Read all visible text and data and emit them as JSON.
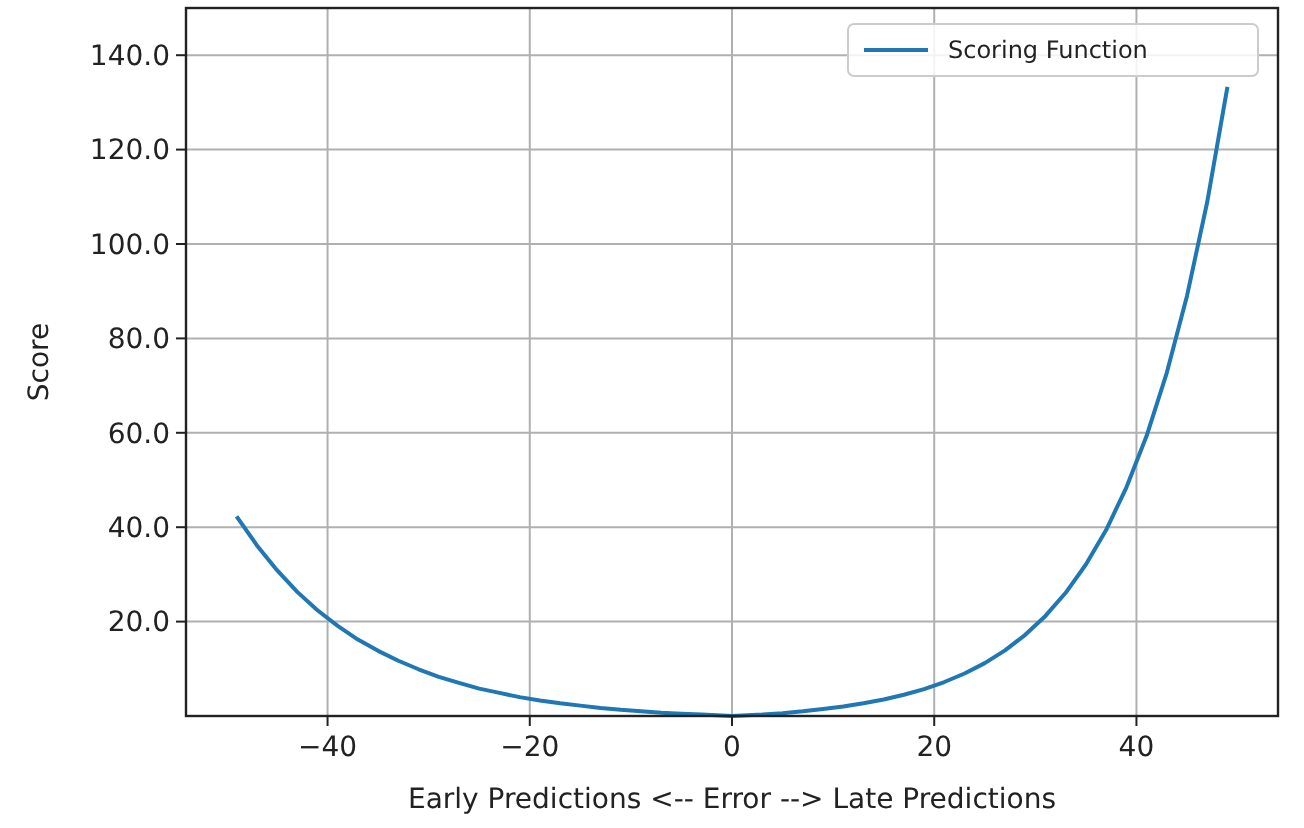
{
  "chart_data": {
    "type": "line",
    "xlabel": "Early Predictions  <--  Error  -->  Late Predictions",
    "ylabel": "Score",
    "x": [
      -49,
      -47,
      -45,
      -43,
      -41,
      -39,
      -37,
      -35,
      -33,
      -31,
      -29,
      -27,
      -25,
      -23,
      -21,
      -19,
      -17,
      -15,
      -13,
      -11,
      -9,
      -7,
      -5,
      -3,
      -1,
      0,
      1,
      3,
      5,
      7,
      9,
      11,
      13,
      15,
      17,
      19,
      21,
      23,
      25,
      27,
      29,
      31,
      33,
      35,
      37,
      39,
      41,
      43,
      45,
      47,
      49
    ],
    "series": [
      {
        "name": "Scoring Function",
        "color": "#1f77b4",
        "values": [
          42.3,
          36.2,
          30.9,
          26.3,
          22.4,
          19.1,
          16.2,
          13.8,
          11.7,
          9.9,
          8.3,
          7.0,
          5.8,
          4.9,
          4.0,
          3.3,
          2.7,
          2.2,
          1.7,
          1.3,
          1.0,
          0.7,
          0.5,
          0.3,
          0.1,
          0,
          0.1,
          0.3,
          0.6,
          1.0,
          1.5,
          2.0,
          2.7,
          3.5,
          4.5,
          5.7,
          7.2,
          9.0,
          11.2,
          13.9,
          17.2,
          21.2,
          26.1,
          32.1,
          39.4,
          48.4,
          59.3,
          72.7,
          89.0,
          108.9,
          133.3
        ]
      }
    ],
    "xlim": [
      -54,
      54
    ],
    "xticks": [
      {
        "value": -40,
        "label": "−40"
      },
      {
        "value": -20,
        "label": "−20"
      },
      0,
      20,
      40
    ],
    "ylim": [
      0,
      150
    ],
    "yticks": [
      {
        "value": 20,
        "label": "20.0"
      },
      {
        "value": 40,
        "label": "40.0"
      },
      {
        "value": 60,
        "label": "60.0"
      },
      {
        "value": 80,
        "label": "80.0"
      },
      {
        "value": 100,
        "label": "100.0"
      },
      {
        "value": 120,
        "label": "120.0"
      },
      {
        "value": 140,
        "label": "140.0"
      }
    ],
    "grid": true,
    "legend": "top right",
    "line_style": "solid",
    "marker": "none"
  }
}
